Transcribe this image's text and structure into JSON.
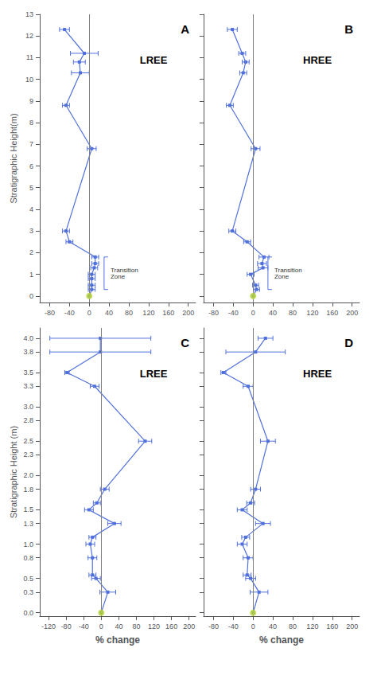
{
  "chart_data": [
    {
      "type": "line",
      "title": "LREE",
      "ylabel": "Stratigraphic Height(m)",
      "xlim": [
        -100,
        215
      ],
      "xticks": [
        -80,
        -40,
        0,
        40,
        80,
        120,
        160,
        200
      ],
      "ylim": [
        -0.3,
        13
      ],
      "yticks": [
        0,
        1,
        2,
        3,
        4,
        5,
        6,
        7,
        8,
        9,
        10,
        11,
        12,
        13
      ],
      "grid": false,
      "series": [
        {
          "type": "line",
          "marker": "square",
          "x": [
            0,
            5,
            5,
            5,
            5,
            10,
            12,
            12,
            -40,
            -47,
            5,
            -47,
            -18,
            -20,
            -10,
            -50
          ],
          "values": [
            0.0,
            0.3,
            0.5,
            0.8,
            1.0,
            1.3,
            1.5,
            1.8,
            2.5,
            3.0,
            6.8,
            8.8,
            10.3,
            10.8,
            11.2,
            12.3
          ],
          "xerr": [
            0,
            7,
            7,
            7,
            7,
            7,
            7,
            7,
            7,
            7,
            9,
            7,
            18,
            12,
            28,
            10
          ]
        },
        {
          "type": "scatter",
          "marker": "circle",
          "x": [
            0
          ],
          "values": [
            0.0
          ]
        }
      ],
      "annotations": [
        {
          "type": "label",
          "text": "A"
        },
        {
          "type": "vline",
          "x": 0,
          "color": "gray"
        },
        {
          "type": "bracket",
          "text": "Transition\nZone",
          "x": 30,
          "y": [
            0.3,
            1.8
          ]
        }
      ]
    },
    {
      "type": "line",
      "title": "HREE",
      "xlim": [
        -100,
        215
      ],
      "xticks": [
        -80,
        -40,
        0,
        40,
        80,
        120,
        160,
        200
      ],
      "ylim": [
        -0.3,
        13
      ],
      "yticks": [
        0,
        1,
        2,
        3,
        4,
        5,
        6,
        7,
        8,
        9,
        10,
        11,
        12,
        13
      ],
      "grid": false,
      "tick_labels": "x",
      "series": [
        {
          "type": "line",
          "marker": "square",
          "x": [
            0,
            7,
            5,
            -5,
            20,
            18,
            22,
            -12,
            -42,
            5,
            -47,
            -20,
            -15,
            -22,
            -42
          ],
          "values": [
            0.0,
            0.3,
            0.5,
            1.0,
            1.3,
            1.5,
            1.8,
            2.5,
            3.0,
            6.8,
            8.8,
            10.3,
            10.8,
            11.2,
            12.3
          ],
          "xerr": [
            0,
            6,
            6,
            7,
            10,
            9,
            10,
            7,
            7,
            9,
            7,
            7,
            7,
            7,
            10
          ]
        },
        {
          "type": "scatter",
          "marker": "circle",
          "x": [
            0
          ],
          "values": [
            0.0
          ]
        }
      ],
      "annotations": [
        {
          "type": "label",
          "text": "B"
        },
        {
          "type": "vline",
          "x": 0,
          "color": "gray"
        },
        {
          "type": "bracket",
          "text": "Transition\nZone",
          "x": 30,
          "y": [
            0.3,
            1.8
          ]
        }
      ]
    },
    {
      "type": "line",
      "title": "LREE",
      "xlabel": "% change",
      "ylabel": "Stratigraphic Height (m)",
      "xlim": [
        -140,
        215
      ],
      "xticks": [
        -120,
        -80,
        -40,
        0,
        40,
        80,
        120,
        160,
        200
      ],
      "ylim": [
        -0.05,
        4.15
      ],
      "yticks": [
        {
          "value": 0,
          "label": "0.0"
        },
        0.3,
        0.5,
        0.8,
        {
          "value": 1.0,
          "label": "1.0"
        },
        1.3,
        1.5,
        1.8,
        {
          "value": 2.0,
          "label": "2.0"
        },
        2.3,
        2.5,
        2.8,
        {
          "value": 3.0,
          "label": "3.0"
        },
        3.3,
        3.5,
        3.8,
        {
          "value": 4.0,
          "label": "4.0"
        }
      ],
      "grid": false,
      "series": [
        {
          "type": "line",
          "marker": "square",
          "x": [
            0,
            15,
            -12,
            -20,
            -20,
            -25,
            -20,
            30,
            -28,
            -10,
            8,
            100,
            -15,
            -78,
            -2,
            -2
          ],
          "values": [
            0.0,
            0.3,
            0.5,
            0.55,
            0.8,
            1.0,
            1.1,
            1.3,
            1.5,
            1.6,
            1.8,
            2.5,
            3.3,
            3.5,
            3.8,
            4.0
          ],
          "xerr": [
            0,
            18,
            10,
            8,
            10,
            10,
            8,
            15,
            10,
            8,
            10,
            15,
            10,
            5,
            115,
            115
          ]
        },
        {
          "type": "scatter",
          "marker": "circle",
          "x": [
            0
          ],
          "values": [
            0.0
          ]
        }
      ],
      "annotations": [
        {
          "type": "label",
          "text": "C"
        },
        {
          "type": "vline",
          "x": 0,
          "color": "gray"
        }
      ]
    },
    {
      "type": "line",
      "title": "HREE",
      "xlabel": "% change",
      "xlim": [
        -100,
        215
      ],
      "xticks": [
        -80,
        -40,
        0,
        40,
        80,
        120,
        160,
        200
      ],
      "ylim": [
        -0.05,
        4.15
      ],
      "yticks": [
        {
          "value": 0,
          "label": "0.0"
        },
        0.3,
        0.5,
        0.8,
        {
          "value": 1.0,
          "label": "1.0"
        },
        1.3,
        1.5,
        1.8,
        {
          "value": 2.0,
          "label": "2.0"
        },
        2.3,
        2.5,
        2.8,
        {
          "value": 3.0,
          "label": "3.0"
        },
        3.3,
        3.5,
        3.8,
        {
          "value": 4.0,
          "label": "4.0"
        }
      ],
      "grid": false,
      "tick_labels": "x",
      "series": [
        {
          "type": "line",
          "marker": "square",
          "x": [
            0,
            12,
            -5,
            -12,
            -10,
            -22,
            -15,
            20,
            -22,
            -5,
            5,
            30,
            -10,
            -60,
            5,
            25
          ],
          "values": [
            0.0,
            0.3,
            0.5,
            0.55,
            0.8,
            1.0,
            1.1,
            1.3,
            1.5,
            1.6,
            1.8,
            2.5,
            3.3,
            3.5,
            3.8,
            4.0
          ],
          "xerr": [
            0,
            18,
            10,
            8,
            10,
            10,
            8,
            15,
            10,
            8,
            10,
            15,
            10,
            5,
            60,
            15
          ]
        },
        {
          "type": "scatter",
          "marker": "circle",
          "x": [
            0
          ],
          "values": [
            0.0
          ]
        }
      ],
      "annotations": [
        {
          "type": "label",
          "text": "D"
        },
        {
          "type": "vline",
          "x": 0,
          "color": "gray"
        }
      ]
    }
  ]
}
